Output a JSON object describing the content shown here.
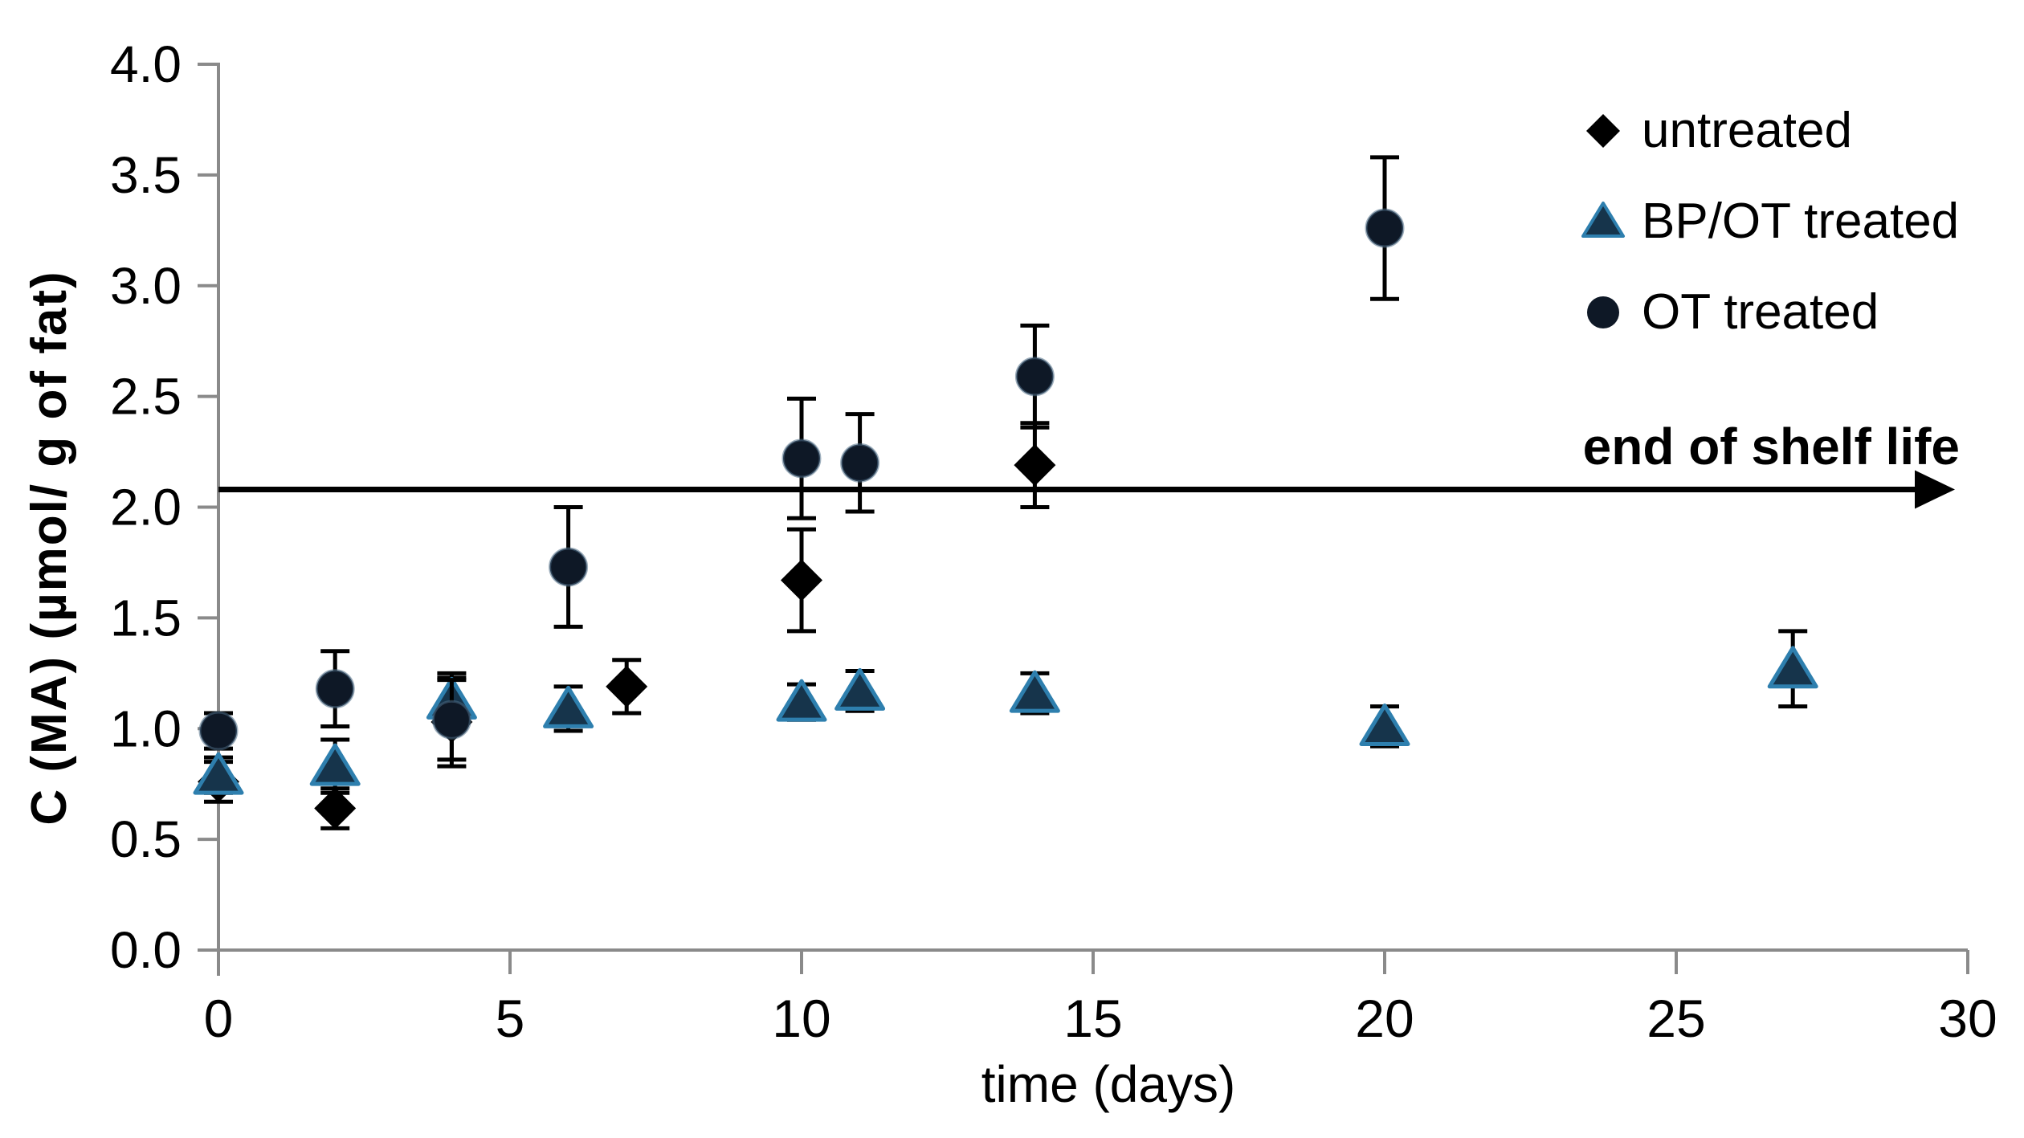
{
  "figure": {
    "x_axis_label": "time (days)",
    "y_axis_label": "C (MA) (µmol/ g of fat)",
    "annotation": "end of shelf life"
  },
  "legend": {
    "items": [
      {
        "label": "untreated",
        "marker": "diamond-icon"
      },
      {
        "label": "BP/OT treated",
        "marker": "triangle-icon"
      },
      {
        "label": "OT treated",
        "marker": "circle-icon"
      }
    ]
  },
  "colors": {
    "axis": "#8a8a8a",
    "text": "#000000",
    "error_bar": "#000000",
    "arrow": "#000000",
    "diamond": "#000000",
    "triangle_fill": "#16344b",
    "triangle_stroke": "#2e7fae",
    "circle_fill": "#0e1826",
    "circle_stroke": "#4a6a84"
  },
  "chart_data": {
    "type": "scatter",
    "title": "",
    "xlabel": "time (days)",
    "ylabel": "C (MA) (µmol/ g of fat)",
    "xlim": [
      0,
      30
    ],
    "ylim": [
      0,
      4
    ],
    "x_ticks": [
      "0",
      "5",
      "10",
      "15",
      "20",
      "25",
      "30"
    ],
    "y_ticks": [
      "0.0",
      "0.5",
      "1.0",
      "1.5",
      "2.0",
      "2.5",
      "3.0",
      "3.5",
      "4.0"
    ],
    "grid": false,
    "legend_position": "top-right",
    "reference_line": {
      "y": 2.08,
      "label": "end of shelf life",
      "style": "horizontal-arrow-right"
    },
    "series": [
      {
        "name": "untreated",
        "marker": "diamond",
        "color": "#000000",
        "x": [
          0,
          2,
          4,
          7,
          10,
          14
        ],
        "y": [
          0.76,
          0.64,
          1.03,
          1.19,
          1.67,
          2.19
        ],
        "yerr": [
          0.09,
          0.09,
          0.2,
          0.12,
          0.23,
          0.19
        ]
      },
      {
        "name": "BP/OT treated",
        "marker": "triangle",
        "fill": "#16344b",
        "stroke": "#2e7fae",
        "x": [
          0,
          2,
          4,
          6,
          10,
          11,
          14,
          20,
          27
        ],
        "y": [
          0.79,
          0.83,
          1.13,
          1.09,
          1.12,
          1.17,
          1.16,
          1.01,
          1.27
        ],
        "yerr": [
          0.08,
          0.12,
          0.12,
          0.1,
          0.08,
          0.09,
          0.09,
          0.09,
          0.17
        ]
      },
      {
        "name": "OT treated",
        "marker": "circle",
        "color": "#0e1826",
        "x": [
          0,
          2,
          4,
          6,
          10,
          11,
          14,
          20
        ],
        "y": [
          0.99,
          1.18,
          1.04,
          1.73,
          2.22,
          2.2,
          2.59,
          3.26
        ],
        "yerr": [
          0.08,
          0.17,
          0.18,
          0.27,
          0.27,
          0.22,
          0.23,
          0.32
        ]
      }
    ]
  }
}
